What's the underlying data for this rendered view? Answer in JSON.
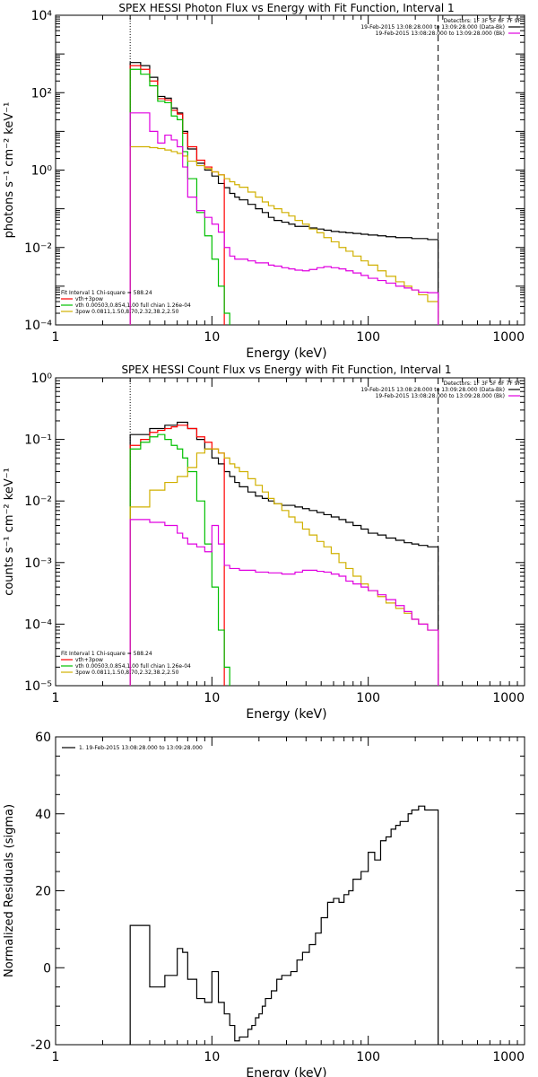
{
  "chart_data": [
    {
      "type": "line",
      "title": "SPEX HESSI Photon Flux vs Energy with Fit Function, Interval 1",
      "xlabel": "Energy (keV)",
      "ylabel": "photons s⁻¹ cm⁻² keV⁻¹",
      "xscale": "log",
      "yscale": "log",
      "xlim": [
        1,
        1000
      ],
      "ylim": [
        0.0001,
        10000
      ],
      "xticks": [
        "1",
        "10",
        "100",
        "1000"
      ],
      "yticks": [
        "10⁻⁴",
        "10⁻²",
        "10⁰",
        "10²",
        "10⁴"
      ],
      "legend_topright": [
        "Detectors: 1F 3F 5F 6F 7F 9F",
        "19-Feb-2015 13:08:28.000 to 13:09:28.000 (Data-Bk)",
        "19-Feb-2015 13:08:28.000 to 13:09:28.000 (Bk)"
      ],
      "legend_bottomleft": [
        "Fit Interval 1   Chi-square = 588.24",
        "vth+3pow",
        "vth 0.00503,0.854,1.00  full chian 1.26e-04",
        "3pow 0.0811,1.50,8.70,2.32,38.2,2.50"
      ],
      "vlines": [
        {
          "x": 3,
          "style": "dotted"
        },
        {
          "x": 280,
          "style": "dashed"
        }
      ],
      "series": [
        {
          "color": "#000000",
          "x": [
            3,
            3.5,
            4,
            4.5,
            5,
            5.5,
            6,
            6.5,
            7,
            8,
            9,
            10,
            11,
            12,
            13,
            14,
            15,
            17,
            19,
            21,
            23,
            25,
            28,
            31,
            34,
            38,
            42,
            47,
            52,
            58,
            65,
            72,
            80,
            90,
            100,
            115,
            130,
            150,
            170,
            190,
            210,
            240,
            280
          ],
          "y": [
            600,
            500,
            250,
            80,
            72,
            40,
            30,
            10,
            3.5,
            1.5,
            1.0,
            0.7,
            0.45,
            0.35,
            0.25,
            0.2,
            0.17,
            0.13,
            0.1,
            0.08,
            0.06,
            0.05,
            0.045,
            0.04,
            0.035,
            0.035,
            0.032,
            0.03,
            0.028,
            0.026,
            0.025,
            0.024,
            0.023,
            0.022,
            0.021,
            0.02,
            0.019,
            0.018,
            0.018,
            0.017,
            0.017,
            0.016,
            0.015
          ]
        },
        {
          "color": "#ff0000",
          "x": [
            3,
            3.5,
            4,
            4.5,
            5,
            5.5,
            6,
            6.5,
            7,
            8,
            9,
            10,
            11,
            12
          ],
          "y": [
            500,
            400,
            200,
            70,
            65,
            35,
            28,
            9,
            4,
            1.8,
            1.2,
            0.9,
            0.75,
            0.6
          ]
        },
        {
          "color": "#00c000",
          "x": [
            3,
            3.5,
            4,
            4.5,
            5,
            5.5,
            6,
            6.5,
            7,
            8,
            9,
            10,
            11,
            12,
            13
          ],
          "y": [
            400,
            300,
            150,
            60,
            55,
            25,
            20,
            3,
            0.6,
            0.08,
            0.02,
            0.005,
            0.001,
            0.0002,
            0.0001
          ]
        },
        {
          "color": "#d0b000",
          "x": [
            3,
            3.5,
            4,
            4.5,
            5,
            5.5,
            6,
            6.5,
            7,
            8,
            9,
            10,
            11,
            12,
            13,
            14,
            15,
            17,
            19,
            21,
            23,
            25,
            28,
            31,
            34,
            38,
            42,
            47,
            52,
            58,
            65,
            72,
            80,
            90,
            100,
            115,
            130,
            150,
            170,
            190,
            210,
            240,
            280
          ],
          "y": [
            4,
            4,
            3.8,
            3.6,
            3.3,
            3.0,
            2.7,
            2.3,
            1.7,
            1.3,
            1.1,
            0.9,
            0.75,
            0.6,
            0.5,
            0.42,
            0.36,
            0.27,
            0.2,
            0.15,
            0.12,
            0.1,
            0.08,
            0.065,
            0.05,
            0.04,
            0.03,
            0.024,
            0.018,
            0.014,
            0.01,
            0.008,
            0.006,
            0.0045,
            0.0035,
            0.0025,
            0.0018,
            0.0013,
            0.001,
            0.0008,
            0.0006,
            0.0004,
            0.0001
          ]
        },
        {
          "color": "#e000e0",
          "x": [
            3,
            3.5,
            4,
            4.5,
            5,
            5.5,
            6,
            6.5,
            7,
            8,
            9,
            10,
            11,
            12,
            13,
            14,
            15,
            17,
            19,
            21,
            23,
            25,
            28,
            31,
            34,
            38,
            42,
            47,
            52,
            58,
            65,
            72,
            80,
            90,
            100,
            115,
            130,
            150,
            170,
            190,
            210,
            240,
            280
          ],
          "y": [
            30,
            30,
            10,
            5,
            8,
            6,
            4,
            1.2,
            0.2,
            0.09,
            0.06,
            0.04,
            0.025,
            0.01,
            0.006,
            0.005,
            0.005,
            0.0045,
            0.004,
            0.004,
            0.0035,
            0.0033,
            0.003,
            0.0028,
            0.0026,
            0.0025,
            0.0027,
            0.003,
            0.0032,
            0.003,
            0.0028,
            0.0025,
            0.0022,
            0.0019,
            0.0016,
            0.0014,
            0.0012,
            0.001,
            0.0009,
            0.0008,
            0.0007,
            0.00068,
            0.00065
          ]
        }
      ]
    },
    {
      "type": "line",
      "title": "SPEX HESSI Count Flux vs Energy with Fit Function, Interval 1",
      "xlabel": "Energy (keV)",
      "ylabel": "counts s⁻¹ cm⁻² keV⁻¹",
      "xscale": "log",
      "yscale": "log",
      "xlim": [
        1,
        1000
      ],
      "ylim": [
        1e-05,
        1
      ],
      "xticks": [
        "1",
        "10",
        "100",
        "1000"
      ],
      "yticks": [
        "10⁻⁵",
        "10⁻⁴",
        "10⁻³",
        "10⁻²",
        "10⁻¹",
        "10⁰"
      ],
      "legend_topright": [
        "Detectors: 1F 3F 5F 6F 7F 9F",
        "19-Feb-2015 13:08:28.000 to 13:09:28.000 (Data-Bk)",
        "19-Feb-2015 13:08:28.000 to 13:09:28.000 (Bk)"
      ],
      "legend_bottomleft": [
        "Fit Interval 1   Chi-square = 588.24",
        "vth+3pow",
        "vth 0.00503,0.854,1.00  full chian 1.26e-04",
        "3pow 0.0811,1.50,8.70,2.32,38.2,2.50"
      ],
      "vlines": [
        {
          "x": 3,
          "style": "dotted"
        },
        {
          "x": 280,
          "style": "dashed"
        }
      ],
      "series": [
        {
          "color": "#000000",
          "x": [
            3,
            3.5,
            4,
            4.5,
            5,
            5.5,
            6,
            6.5,
            7,
            8,
            9,
            10,
            11,
            12,
            13,
            14,
            15,
            17,
            19,
            21,
            23,
            25,
            28,
            31,
            34,
            38,
            42,
            47,
            52,
            58,
            65,
            72,
            80,
            90,
            100,
            115,
            130,
            150,
            170,
            190,
            210,
            240,
            280
          ],
          "y": [
            0.12,
            0.12,
            0.15,
            0.15,
            0.17,
            0.17,
            0.19,
            0.19,
            0.15,
            0.1,
            0.07,
            0.05,
            0.04,
            0.03,
            0.025,
            0.02,
            0.017,
            0.014,
            0.012,
            0.011,
            0.01,
            0.009,
            0.0085,
            0.0085,
            0.008,
            0.0075,
            0.007,
            0.0065,
            0.006,
            0.0055,
            0.005,
            0.0045,
            0.004,
            0.0035,
            0.003,
            0.0028,
            0.0025,
            0.0023,
            0.0021,
            0.002,
            0.0019,
            0.0018,
            0.0016
          ]
        },
        {
          "color": "#ff0000",
          "x": [
            3,
            3.5,
            4,
            4.5,
            5,
            5.5,
            6,
            6.5,
            7,
            8,
            9,
            10,
            11,
            12
          ],
          "y": [
            0.08,
            0.1,
            0.13,
            0.14,
            0.15,
            0.16,
            0.17,
            0.17,
            0.15,
            0.11,
            0.09,
            0.07,
            0.06,
            0.055
          ]
        },
        {
          "color": "#00c000",
          "x": [
            3,
            3.5,
            4,
            4.5,
            5,
            5.5,
            6,
            6.5,
            7,
            8,
            9,
            10,
            11,
            12,
            13
          ],
          "y": [
            0.07,
            0.09,
            0.11,
            0.12,
            0.1,
            0.08,
            0.07,
            0.05,
            0.03,
            0.01,
            0.002,
            0.0004,
            8e-05,
            2e-05,
            1e-05
          ]
        },
        {
          "color": "#d0b000",
          "x": [
            3,
            3.5,
            4,
            4.5,
            5,
            5.5,
            6,
            6.5,
            7,
            8,
            9,
            10,
            11,
            12,
            13,
            14,
            15,
            17,
            19,
            21,
            23,
            25,
            28,
            31,
            34,
            38,
            42,
            47,
            52,
            58,
            65,
            72,
            80,
            90,
            100,
            115,
            130,
            150,
            170,
            190,
            210,
            240,
            280
          ],
          "y": [
            0.008,
            0.008,
            0.015,
            0.015,
            0.02,
            0.02,
            0.025,
            0.025,
            0.035,
            0.06,
            0.07,
            0.07,
            0.06,
            0.05,
            0.04,
            0.035,
            0.03,
            0.023,
            0.018,
            0.014,
            0.011,
            0.009,
            0.007,
            0.0055,
            0.0045,
            0.0035,
            0.0028,
            0.0022,
            0.0018,
            0.0014,
            0.001,
            0.0008,
            0.0006,
            0.00045,
            0.00035,
            0.00028,
            0.00022,
            0.00018,
            0.00015,
            0.00012,
            0.0001,
            8e-05,
            1e-05
          ]
        },
        {
          "color": "#e000e0",
          "x": [
            3,
            3.5,
            4,
            4.5,
            5,
            5.5,
            6,
            6.5,
            7,
            8,
            9,
            10,
            11,
            12,
            13,
            14,
            15,
            17,
            19,
            21,
            23,
            25,
            28,
            31,
            34,
            38,
            42,
            47,
            52,
            58,
            65,
            72,
            80,
            90,
            100,
            115,
            130,
            150,
            170,
            190,
            210,
            240,
            280
          ],
          "y": [
            0.005,
            0.005,
            0.0045,
            0.0045,
            0.004,
            0.004,
            0.003,
            0.0025,
            0.002,
            0.0018,
            0.0015,
            0.004,
            0.002,
            0.0009,
            0.0008,
            0.0008,
            0.00075,
            0.00075,
            0.0007,
            0.0007,
            0.00068,
            0.00068,
            0.00065,
            0.00065,
            0.0007,
            0.00075,
            0.00075,
            0.00072,
            0.0007,
            0.00065,
            0.0006,
            0.0005,
            0.00045,
            0.0004,
            0.00035,
            0.0003,
            0.00025,
            0.0002,
            0.00016,
            0.00012,
            0.0001,
            8e-05,
            6e-05
          ]
        }
      ]
    },
    {
      "type": "line",
      "title": "",
      "xlabel": "Energy (keV)",
      "ylabel": "Normalized Residuals (sigma)",
      "xscale": "log",
      "yscale": "linear",
      "xlim": [
        1,
        1000
      ],
      "ylim": [
        -20,
        60
      ],
      "xticks": [
        "1",
        "10",
        "100",
        "1000"
      ],
      "yticks": [
        "-20",
        "0",
        "20",
        "40",
        "60"
      ],
      "legend_topleft": [
        "1. 19-Feb-2015 13:08:28.000 to 13:09:28.000"
      ],
      "series": [
        {
          "color": "#000000",
          "edges": [
            3,
            4,
            4.5,
            5,
            5.5,
            6,
            6.5,
            7,
            8,
            9,
            10,
            11,
            12,
            13,
            14,
            15,
            16,
            17,
            18,
            19,
            20,
            21,
            22,
            24,
            26,
            28,
            30,
            32,
            35,
            38,
            42,
            46,
            50,
            55,
            60,
            65,
            70,
            75,
            80,
            90,
            100,
            110,
            120,
            130,
            140,
            150,
            160,
            170,
            180,
            190,
            200,
            210,
            230,
            250,
            280
          ],
          "values": [
            11,
            -5,
            -5,
            -2,
            -2,
            5,
            4,
            -3,
            -8,
            -9,
            -1,
            -9,
            -12,
            -15,
            -19,
            -18,
            -18,
            -16,
            -15,
            -13,
            -12,
            -10,
            -8,
            -6,
            -3,
            -2,
            -2,
            -1,
            2,
            4,
            6,
            9,
            13,
            17,
            18,
            17,
            19,
            20,
            23,
            25,
            30,
            28,
            33,
            34,
            36,
            37,
            38,
            38,
            40,
            41,
            41,
            42,
            41,
            41
          ]
        }
      ]
    }
  ]
}
